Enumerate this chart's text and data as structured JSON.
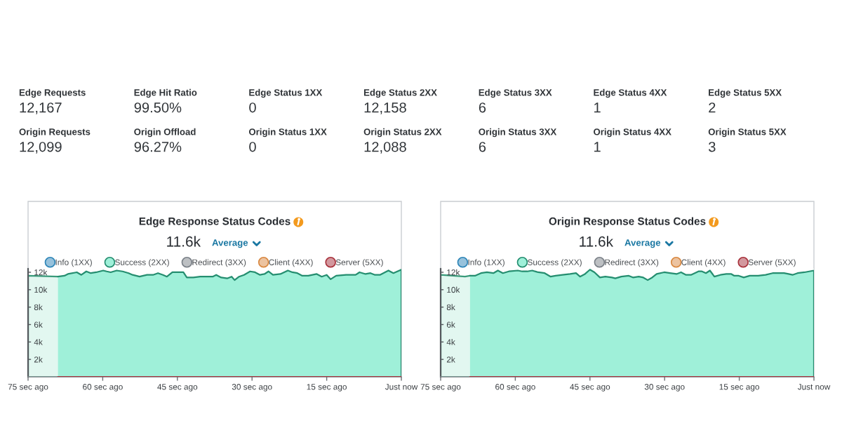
{
  "chart_data": [
    {
      "type": "other",
      "annotations": [
        "Edge Requests",
        "12,167",
        "Edge Hit Ratio",
        "99.50%",
        "Edge Status 1XX",
        "0",
        "Edge Status 2XX",
        "12,158",
        "Edge Status 3XX",
        "6",
        "Edge Status 4XX",
        "1",
        "Edge Status 5XX",
        "2",
        "Origin Requests",
        "12,099",
        "Origin Offload",
        "96.27%",
        "Origin Status 1XX",
        "0",
        "Origin Status 2XX",
        "12,088",
        "Origin Status 3XX",
        "6",
        "Origin Status 4XX",
        "1",
        "Origin Status 5XX",
        "3"
      ]
    },
    {
      "type": "area",
      "title": "Edge Response Status Codes",
      "subtitle": "11.6k",
      "annotations": [
        "Average"
      ],
      "legend": "top",
      "xlim": [
        -75,
        0
      ],
      "xticks": [
        {
          "value": -75,
          "label": "75 sec ago"
        },
        {
          "value": -60,
          "label": "60 sec ago"
        },
        {
          "value": -45,
          "label": "45 sec ago"
        },
        {
          "value": -30,
          "label": "30 sec ago"
        },
        {
          "value": -15,
          "label": "15 sec ago"
        },
        {
          "value": 0,
          "label": "Just now"
        }
      ],
      "ylim": [
        0,
        12400
      ],
      "yticks": [
        {
          "value": 2000,
          "label": "2k"
        },
        {
          "value": 4000,
          "label": "4k"
        },
        {
          "value": 6000,
          "label": "6k"
        },
        {
          "value": 8000,
          "label": "8k"
        },
        {
          "value": 10000,
          "label": "10k"
        },
        {
          "value": 12000,
          "label": "12k"
        }
      ],
      "series": [
        {
          "type": "area",
          "color": "#e2f7f0",
          "x": [
            -75,
            -69.0
          ],
          "values": [
            11600,
            11500
          ]
        },
        {
          "type": "line",
          "name": "Info (1XX)",
          "color": "#2f86b8"
        },
        {
          "type": "area",
          "name": "Success (2XX)",
          "color": "#9ff0d9",
          "x": [
            -69.0,
            -67.7,
            -67.0,
            -65.2,
            -64.3,
            -63.3,
            -62.4,
            -61.3,
            -59.9,
            -59.2,
            -58.4,
            -57.2,
            -56.0,
            -54.8,
            -54.0,
            -52.6,
            -51.1,
            -49.9,
            -48.9,
            -47.9,
            -47.1,
            -46.0,
            -45.0,
            -43.8,
            -43.1,
            -41.8,
            -40.4,
            -39.2,
            -37.9,
            -37.2,
            -36.2,
            -35.0,
            -34.1,
            -33.5,
            -32.6,
            -31.6,
            -30.4,
            -29.4,
            -28.4,
            -27.5,
            -26.7,
            -25.8,
            -24.3,
            -22.8,
            -21.9,
            -20.9,
            -19.9,
            -18.7,
            -17.0,
            -16.0,
            -15.0,
            -14.2,
            -13.1,
            -11.1,
            -9.2,
            -8.4,
            -7.2,
            -6.2,
            -5.3,
            -4.3,
            -2.6,
            -1.6,
            0
          ],
          "values": [
            11500,
            11600,
            11800,
            12000,
            11700,
            12100,
            11900,
            12000,
            12200,
            12100,
            12000,
            12200,
            12100,
            11900,
            11700,
            11500,
            11700,
            11700,
            11900,
            11700,
            11500,
            12000,
            12000,
            12000,
            11400,
            11400,
            11500,
            11500,
            11500,
            11700,
            11400,
            11300,
            11500,
            11100,
            11500,
            11700,
            12100,
            12000,
            11700,
            11800,
            12100,
            11700,
            11800,
            12200,
            12000,
            11900,
            11600,
            11600,
            11800,
            11500,
            11700,
            11200,
            11600,
            11700,
            11700,
            12000,
            11800,
            11900,
            11700,
            11700,
            12200,
            11900,
            12300
          ]
        },
        {
          "type": "line",
          "name": "Redirect (3XX)",
          "color": "#7b8188"
        },
        {
          "type": "line",
          "name": "Client (4XX)",
          "color": "#d98840"
        },
        {
          "type": "line",
          "name": "Server (5XX)",
          "color": "#a8323c",
          "x": [
            -69.0,
            0
          ],
          "values": [
            0,
            0
          ]
        }
      ]
    },
    {
      "type": "area",
      "title": "Origin Response Status Codes",
      "subtitle": "11.6k",
      "annotations": [
        "Average"
      ],
      "legend": "top",
      "xlim": [
        -75,
        0
      ],
      "xticks": [
        {
          "value": -75,
          "label": "75 sec ago"
        },
        {
          "value": -60,
          "label": "60 sec ago"
        },
        {
          "value": -45,
          "label": "45 sec ago"
        },
        {
          "value": -30,
          "label": "30 sec ago"
        },
        {
          "value": -15,
          "label": "15 sec ago"
        },
        {
          "value": 0,
          "label": "Just now"
        }
      ],
      "ylim": [
        0,
        12400
      ],
      "yticks": [
        {
          "value": 2000,
          "label": "2k"
        },
        {
          "value": 4000,
          "label": "4k"
        },
        {
          "value": 6000,
          "label": "6k"
        },
        {
          "value": 8000,
          "label": "8k"
        },
        {
          "value": 10000,
          "label": "10k"
        },
        {
          "value": 12000,
          "label": "12k"
        }
      ],
      "series": [
        {
          "type": "area",
          "color": "#e2f7f0",
          "x": [
            -75,
            -70.1,
            -69.1
          ],
          "values": [
            11700,
            11500,
            11600
          ]
        },
        {
          "type": "line",
          "name": "Info (1XX)",
          "color": "#2f86b8"
        },
        {
          "type": "area",
          "name": "Success (2XX)",
          "color": "#9ff0d9",
          "x": [
            -69.1,
            -68.1,
            -66.9,
            -65.7,
            -64.4,
            -63.5,
            -62.5,
            -61.3,
            -59.5,
            -58.6,
            -57.6,
            -56.6,
            -55.4,
            -54.1,
            -52.9,
            -51.9,
            -50.5,
            -49.0,
            -47.8,
            -47.0,
            -46.0,
            -45.0,
            -44.1,
            -43.0,
            -41.9,
            -40.6,
            -39.9,
            -38.7,
            -37.2,
            -36.3,
            -35.2,
            -34.3,
            -33.4,
            -32.5,
            -31.6,
            -30.1,
            -28.9,
            -27.6,
            -26.7,
            -25.7,
            -24.7,
            -23.2,
            -22.5,
            -21.7,
            -20.9,
            -20.0,
            -18.8,
            -17.6,
            -16.6,
            -16.0,
            -15.1,
            -14.1,
            -12.9,
            -11.2,
            -9.7,
            -8.3,
            -7.3,
            -6.0,
            -5.1,
            -4.3,
            -3.3,
            -1.9,
            0
          ],
          "values": [
            11600,
            11600,
            11900,
            12000,
            11900,
            12200,
            11900,
            12100,
            12200,
            12100,
            12100,
            12200,
            12000,
            11900,
            11500,
            11600,
            11700,
            11800,
            11900,
            11500,
            11800,
            12300,
            12000,
            11400,
            11500,
            11400,
            11300,
            11500,
            11600,
            11400,
            11500,
            11400,
            11100,
            11400,
            11800,
            12000,
            11900,
            11800,
            12000,
            11700,
            11700,
            12100,
            12100,
            11900,
            12200,
            11500,
            11700,
            11800,
            11800,
            11600,
            11600,
            11400,
            11600,
            11600,
            11700,
            11900,
            11900,
            11900,
            11800,
            11700,
            11900,
            12000,
            12200
          ]
        },
        {
          "type": "line",
          "name": "Redirect (3XX)",
          "color": "#7b8188"
        },
        {
          "type": "line",
          "name": "Client (4XX)",
          "color": "#d98840"
        },
        {
          "type": "line",
          "name": "Server (5XX)",
          "color": "#a8323c",
          "x": [
            -69.1,
            0
          ],
          "values": [
            0,
            0
          ]
        }
      ]
    }
  ]
}
